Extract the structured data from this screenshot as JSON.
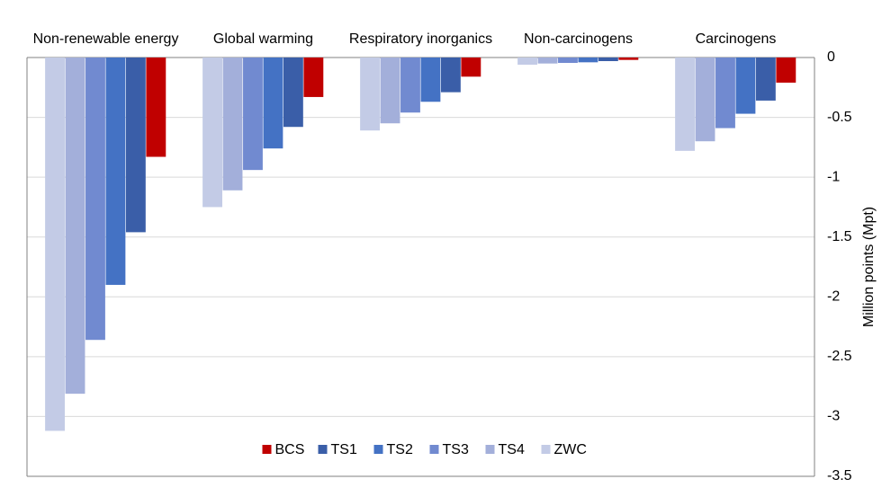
{
  "chart_data": {
    "type": "bar",
    "y_axis_label": "Million points (Mpt)",
    "categories": [
      "Non-renewable energy",
      "Global warming",
      "Respiratory inorganics",
      "Non-carcinogens",
      "Carcinogens"
    ],
    "series": [
      {
        "name": "BCS",
        "color": "#c00000",
        "values": [
          -0.83,
          -0.33,
          -0.16,
          -0.02,
          -0.21
        ]
      },
      {
        "name": "TS1",
        "color": "#3a5ea8",
        "values": [
          -1.46,
          -0.58,
          -0.29,
          -0.03,
          -0.36
        ]
      },
      {
        "name": "TS2",
        "color": "#4472c4",
        "values": [
          -1.9,
          -0.76,
          -0.37,
          -0.04,
          -0.47
        ]
      },
      {
        "name": "TS3",
        "color": "#718ad0",
        "values": [
          -2.36,
          -0.94,
          -0.46,
          -0.045,
          -0.59
        ]
      },
      {
        "name": "TS4",
        "color": "#a3afda",
        "values": [
          -2.81,
          -1.11,
          -0.55,
          -0.05,
          -0.7
        ]
      },
      {
        "name": "ZWC",
        "color": "#c3cbe6",
        "values": [
          -3.12,
          -1.25,
          -0.61,
          -0.06,
          -0.78
        ]
      }
    ],
    "ylim": [
      -3.5,
      0
    ],
    "yticks": [
      0,
      -0.5,
      -1,
      -1.5,
      -2,
      -2.5,
      -3,
      -3.5
    ],
    "grid": true,
    "legend_position": "bottom"
  }
}
